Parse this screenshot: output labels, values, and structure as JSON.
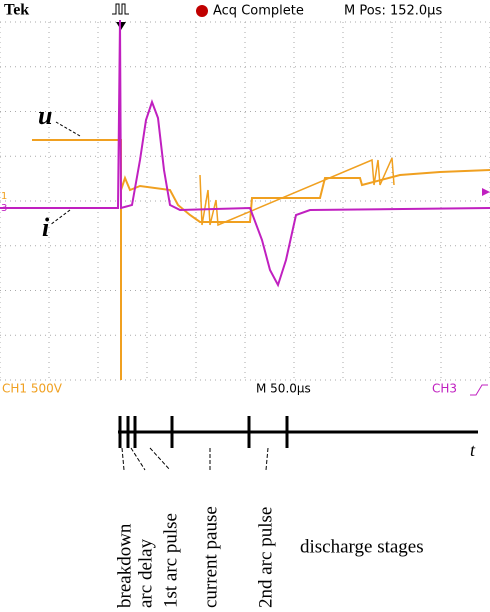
{
  "header": {
    "brand": "Tek",
    "status": "Acq Complete",
    "position": "M Pos: 152.0µs"
  },
  "traces": {
    "voltage_label": "u",
    "current_label": "i",
    "ch1_marker": "1",
    "ch3_marker": "3"
  },
  "footer": {
    "ch1": "CH1  500V",
    "timebase": "M 50.0µs",
    "ch3": "CH3"
  },
  "timeline": {
    "axis_label": "t",
    "stages": [
      "breakdown",
      "arc delay",
      "1st arc pulse",
      "current pause",
      "2nd arc pulse"
    ],
    "caption": "discharge stages"
  }
}
